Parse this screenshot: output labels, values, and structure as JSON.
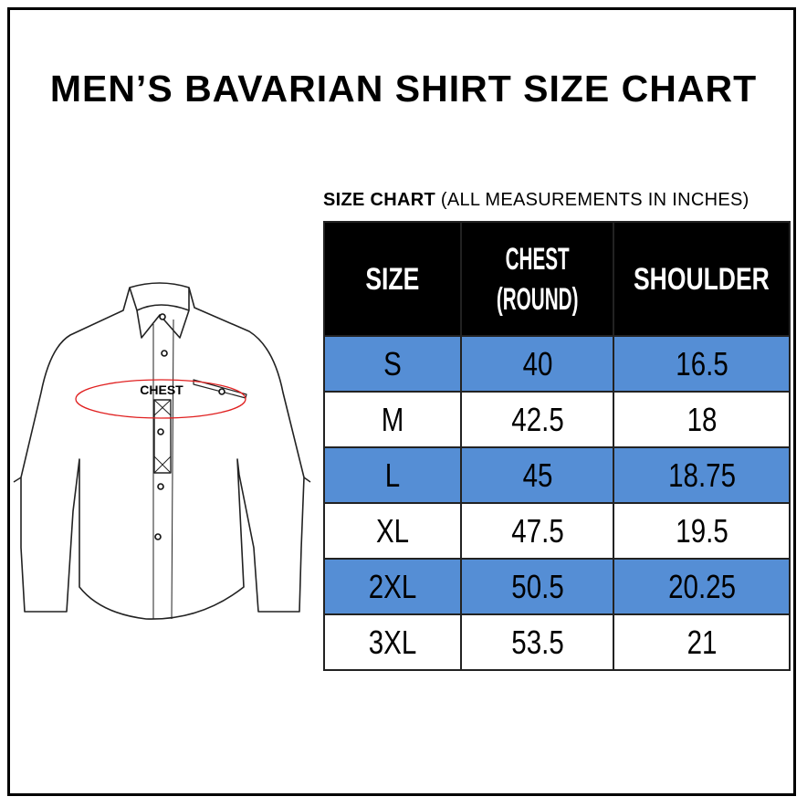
{
  "title": "MEN’S BAVARIAN SHIRT SIZE CHART",
  "subtitle": {
    "bold": "SIZE CHART",
    "rest": " (ALL MEASUREMENTS IN INCHES)"
  },
  "illustration": {
    "label": "CHEST",
    "ellipse_color": "#e02020"
  },
  "table": {
    "headers": [
      "SIZE",
      "CHEST (ROUND)",
      "SHOULDER"
    ],
    "header_lines": {
      "chest_1": "CHEST",
      "chest_2": "(ROUND)"
    },
    "rows": [
      [
        "S",
        "40",
        "16.5"
      ],
      [
        "M",
        "42.5",
        "18"
      ],
      [
        "L",
        "45",
        "18.75"
      ],
      [
        "XL",
        "47.5",
        "19.5"
      ],
      [
        "2XL",
        "50.5",
        "20.25"
      ],
      [
        "3XL",
        "53.5",
        "21"
      ]
    ],
    "colors": {
      "header_bg": "#000000",
      "band_blue": "#558ed5",
      "band_white": "#ffffff"
    }
  }
}
